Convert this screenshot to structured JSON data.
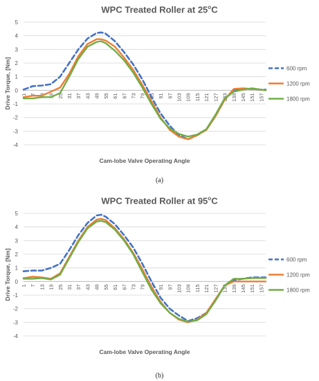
{
  "chart_data": [
    {
      "type": "line",
      "title": {
        "main": "WPC Treated Roller at 25",
        "sup": "o",
        "unit": "C"
      },
      "xlabel": "Cam-lobe Valve Operating Angle",
      "ylabel": "Drive Torque, [Nm]",
      "ylim": [
        -4,
        5
      ],
      "yticks": [
        5,
        4,
        3,
        2,
        1,
        0,
        -1,
        -2,
        -3,
        -4
      ],
      "xticks": [
        "1",
        "7",
        "13",
        "19",
        "25",
        "31",
        "37",
        "43",
        "49",
        "55",
        "61",
        "67",
        "73",
        "79",
        "85",
        "91",
        "97",
        "103",
        "109",
        "115",
        "121",
        "127",
        "133",
        "139",
        "145",
        "151",
        "157"
      ],
      "xrange": [
        1,
        160
      ],
      "grid": true,
      "legend_position": "right",
      "x": [
        1,
        7,
        13,
        19,
        25,
        31,
        37,
        43,
        49,
        52,
        55,
        61,
        67,
        73,
        79,
        85,
        91,
        97,
        103,
        109,
        115,
        121,
        127,
        133,
        139,
        145,
        151,
        157,
        160
      ],
      "series": [
        {
          "name": "600 rpm",
          "color": "#4472C4",
          "dash": true,
          "values": [
            0.05,
            0.3,
            0.35,
            0.45,
            1.0,
            2.0,
            3.0,
            3.8,
            4.2,
            4.25,
            4.15,
            3.6,
            2.8,
            1.9,
            0.8,
            -0.5,
            -1.7,
            -2.6,
            -3.3,
            -3.6,
            -3.3,
            -2.9,
            -1.9,
            -0.7,
            0.0,
            0.1,
            0.1,
            0.05,
            0.05
          ]
        },
        {
          "name": "1200 rpm",
          "color": "#ED7D31",
          "dash": false,
          "values": [
            -0.5,
            -0.4,
            -0.4,
            -0.1,
            0.2,
            1.2,
            2.5,
            3.4,
            3.75,
            3.75,
            3.65,
            3.2,
            2.4,
            1.5,
            0.4,
            -0.8,
            -2.0,
            -2.9,
            -3.4,
            -3.6,
            -3.3,
            -2.9,
            -1.9,
            -0.7,
            0.1,
            0.15,
            0.1,
            0.05,
            0.0
          ]
        },
        {
          "name": "1800 rpm",
          "color": "#70AD47",
          "dash": false,
          "values": [
            -0.6,
            -0.6,
            -0.5,
            -0.5,
            -0.2,
            1.0,
            2.3,
            3.2,
            3.55,
            3.6,
            3.45,
            2.9,
            2.2,
            1.3,
            0.2,
            -1.0,
            -2.1,
            -2.8,
            -3.2,
            -3.4,
            -3.25,
            -2.85,
            -1.8,
            -0.6,
            -0.1,
            0.05,
            0.15,
            0.05,
            0.0
          ]
        }
      ]
    },
    {
      "type": "line",
      "title": {
        "main": "WPC Treated Roller at 95",
        "sup": "o",
        "unit": "C"
      },
      "xlabel": "Cam-lobe Valve Operating Angle",
      "ylabel": "Drive Torque, [Nm]",
      "ylim": [
        -4,
        5
      ],
      "yticks": [
        5,
        4,
        3,
        2,
        1,
        0,
        -1,
        -2,
        -3,
        -4
      ],
      "xticks": [
        "1",
        "7",
        "13",
        "19",
        "25",
        "31",
        "37",
        "43",
        "49",
        "55",
        "61",
        "67",
        "73",
        "79",
        "85",
        "91",
        "97",
        "103",
        "109",
        "115",
        "121",
        "127",
        "133",
        "139",
        "145",
        "151",
        "157"
      ],
      "xrange": [
        1,
        160
      ],
      "grid": true,
      "legend_position": "right",
      "x": [
        1,
        7,
        13,
        19,
        25,
        31,
        37,
        43,
        49,
        52,
        55,
        61,
        67,
        73,
        79,
        85,
        91,
        97,
        103,
        109,
        115,
        121,
        127,
        133,
        139,
        145,
        151,
        157,
        160
      ],
      "series": [
        {
          "name": "600 rpm",
          "color": "#4472C4",
          "dash": true,
          "values": [
            0.75,
            0.8,
            0.8,
            1.0,
            1.3,
            2.3,
            3.4,
            4.3,
            4.85,
            4.9,
            4.75,
            4.2,
            3.4,
            2.5,
            1.3,
            0.0,
            -1.2,
            -2.0,
            -2.5,
            -2.9,
            -2.7,
            -2.3,
            -1.4,
            -0.3,
            0.1,
            0.2,
            0.3,
            0.3,
            0.3
          ]
        },
        {
          "name": "1200 rpm",
          "color": "#ED7D31",
          "dash": false,
          "values": [
            0.25,
            0.35,
            0.3,
            0.2,
            0.6,
            1.8,
            3.0,
            4.0,
            4.55,
            4.6,
            4.5,
            3.9,
            3.1,
            2.1,
            0.9,
            -0.4,
            -1.5,
            -2.3,
            -2.8,
            -3.0,
            -2.8,
            -2.3,
            -1.3,
            -0.3,
            0.0,
            0.0,
            0.0,
            0.0,
            0.0
          ]
        },
        {
          "name": "1800 rpm",
          "color": "#70AD47",
          "dash": false,
          "values": [
            0.2,
            0.2,
            0.25,
            0.15,
            0.5,
            1.7,
            2.9,
            3.9,
            4.4,
            4.45,
            4.35,
            3.8,
            3.0,
            2.0,
            0.7,
            -0.6,
            -1.6,
            -2.3,
            -2.75,
            -2.95,
            -2.85,
            -2.4,
            -1.4,
            -0.3,
            0.2,
            0.2,
            0.25,
            0.25,
            0.25
          ]
        }
      ]
    }
  ],
  "figure_labels": [
    "(a)",
    "(b)"
  ]
}
